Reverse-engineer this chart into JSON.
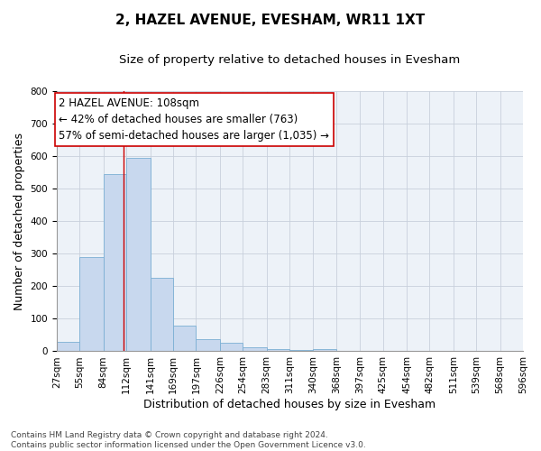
{
  "title": "2, HAZEL AVENUE, EVESHAM, WR11 1XT",
  "subtitle": "Size of property relative to detached houses in Evesham",
  "xlabel": "Distribution of detached houses by size in Evesham",
  "ylabel": "Number of detached properties",
  "bin_labels": [
    "27sqm",
    "55sqm",
    "84sqm",
    "112sqm",
    "141sqm",
    "169sqm",
    "197sqm",
    "226sqm",
    "254sqm",
    "283sqm",
    "311sqm",
    "340sqm",
    "368sqm",
    "397sqm",
    "425sqm",
    "454sqm",
    "482sqm",
    "511sqm",
    "539sqm",
    "568sqm",
    "596sqm"
  ],
  "bin_edges": [
    27,
    55,
    84,
    112,
    141,
    169,
    197,
    226,
    254,
    283,
    311,
    340,
    368,
    397,
    425,
    454,
    482,
    511,
    539,
    568,
    596
  ],
  "bar_heights": [
    30,
    290,
    545,
    595,
    225,
    80,
    38,
    25,
    12,
    8,
    5,
    7,
    0,
    0,
    0,
    0,
    0,
    0,
    0,
    0
  ],
  "bar_color": "#c8d8ee",
  "bar_edge_color": "#7bafd4",
  "vline_x": 108,
  "vline_color": "#cc0000",
  "annotation_line1": "2 HAZEL AVENUE: 108sqm",
  "annotation_line2": "← 42% of detached houses are smaller (763)",
  "annotation_line3": "57% of semi-detached houses are larger (1,035) →",
  "ylim": [
    0,
    800
  ],
  "yticks": [
    0,
    100,
    200,
    300,
    400,
    500,
    600,
    700,
    800
  ],
  "footnote": "Contains HM Land Registry data © Crown copyright and database right 2024.\nContains public sector information licensed under the Open Government Licence v3.0.",
  "title_fontsize": 11,
  "subtitle_fontsize": 9.5,
  "axis_label_fontsize": 9,
  "tick_fontsize": 7.5,
  "annotation_fontsize": 8.5,
  "footnote_fontsize": 6.5,
  "grid_color": "#c8d0dc",
  "background_color": "#edf2f8"
}
